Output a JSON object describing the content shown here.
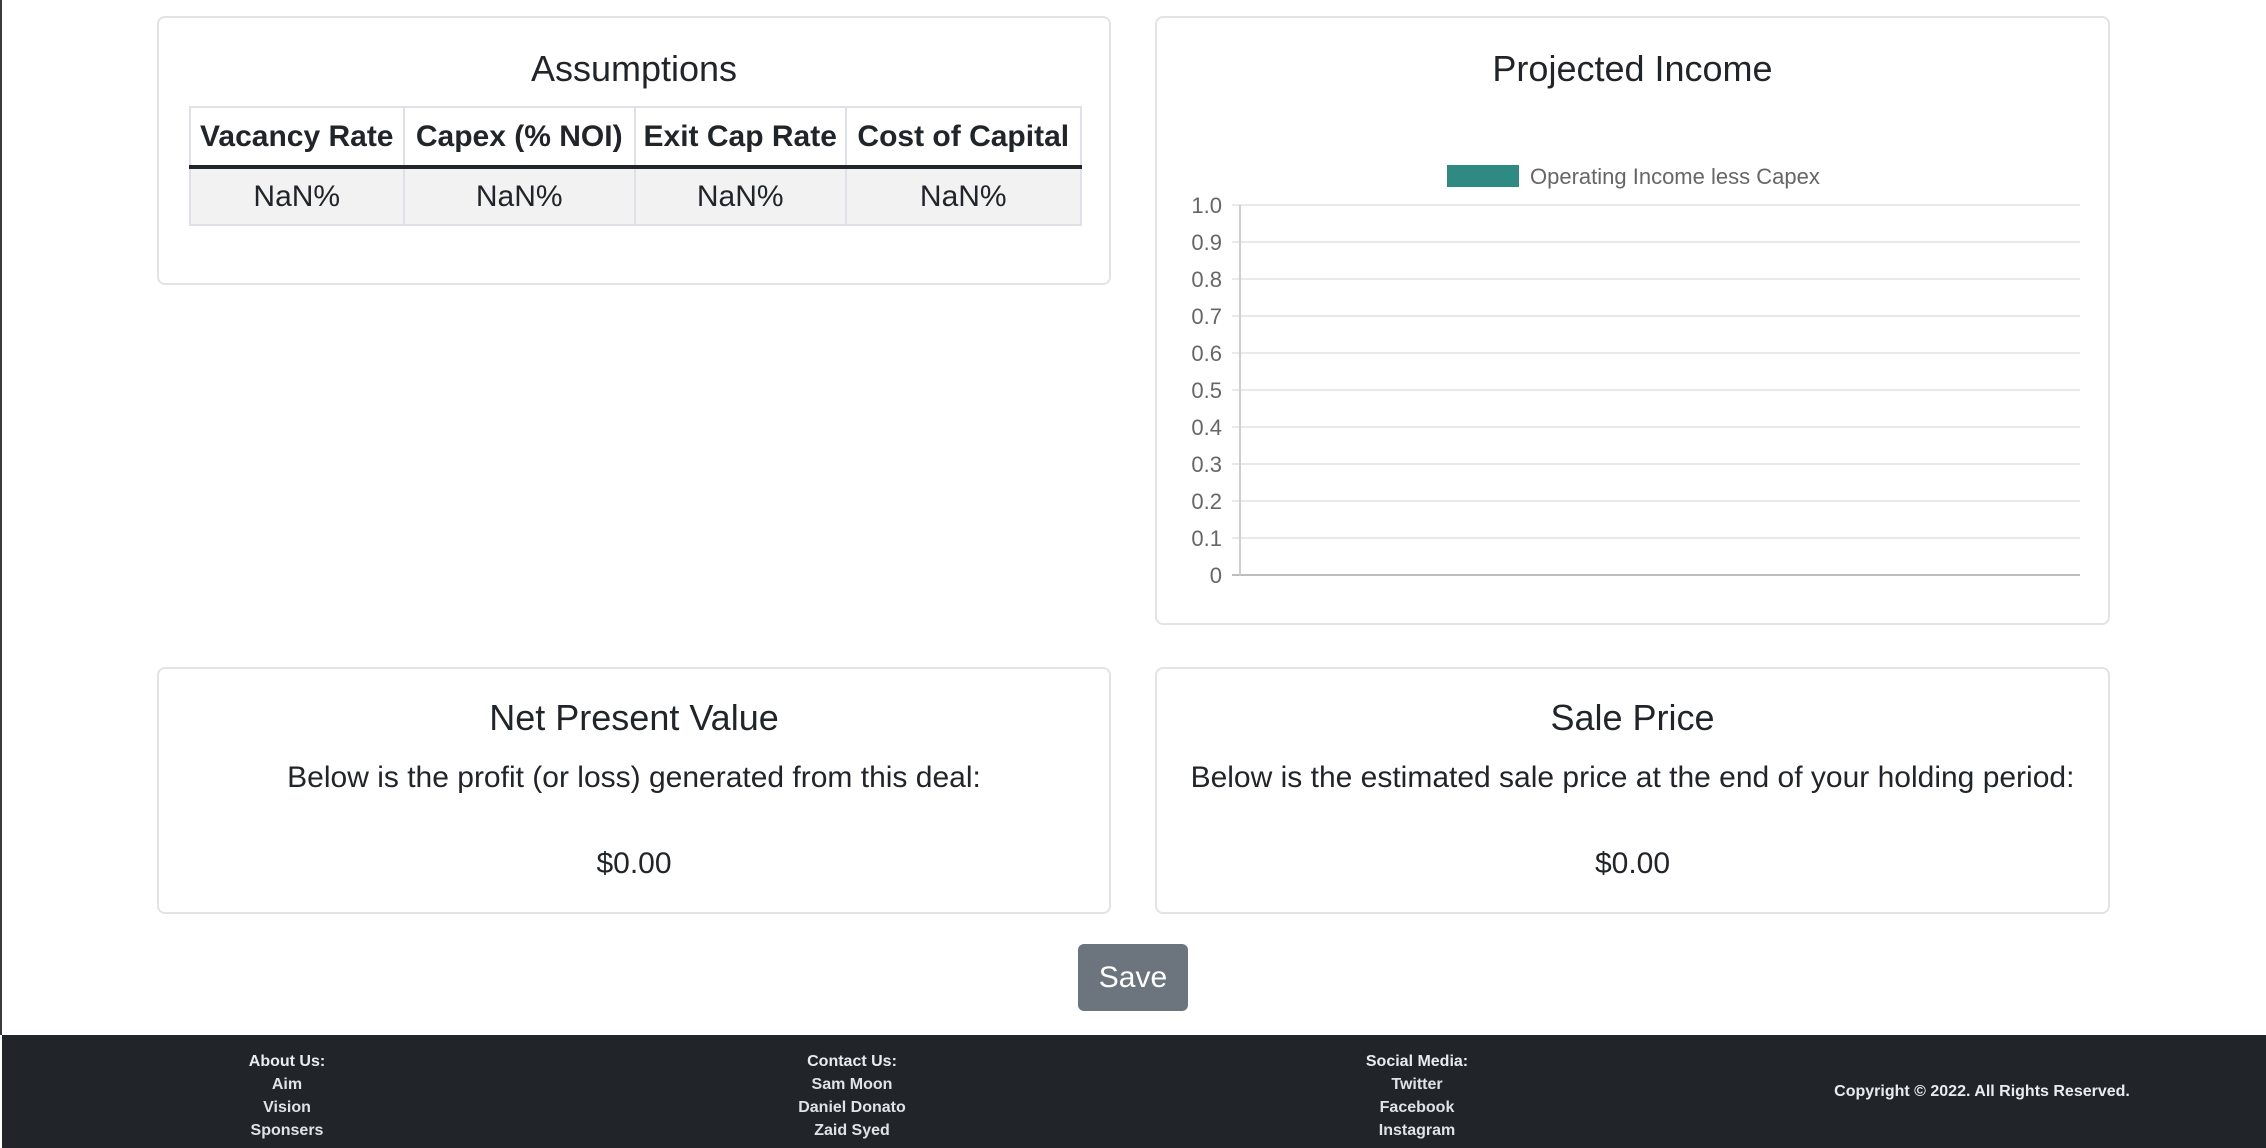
{
  "assumptions": {
    "title": "Assumptions",
    "headers": [
      "Vacancy Rate",
      "Capex (% NOI)",
      "Exit Cap Rate",
      "Cost of Capital"
    ],
    "values": [
      "NaN%",
      "NaN%",
      "NaN%",
      "NaN%"
    ]
  },
  "income": {
    "title": "Projected Income"
  },
  "chart_data": {
    "type": "bar",
    "title": "Projected Income",
    "categories": [],
    "series": [
      {
        "name": "Operating Income less Capex",
        "values": [],
        "color": "#2f8a84"
      }
    ],
    "ylim": [
      0,
      1.0
    ],
    "yticks": [
      "0",
      "0.1",
      "0.2",
      "0.3",
      "0.4",
      "0.5",
      "0.6",
      "0.7",
      "0.8",
      "0.9",
      "1.0"
    ],
    "xlabel": "",
    "ylabel": "",
    "legend": "top",
    "grid": true
  },
  "npv": {
    "title": "Net Present Value",
    "description": "Below is the profit (or loss) generated from this deal:",
    "value": "$0.00"
  },
  "sale": {
    "title": "Sale Price",
    "description": "Below is the estimated sale price at the end of your holding period:",
    "value": "$0.00"
  },
  "save_label": "Save",
  "footer": {
    "about": {
      "heading": "About Us:",
      "items": [
        "Aim",
        "Vision",
        "Sponsers"
      ]
    },
    "contact": {
      "heading": "Contact Us:",
      "items": [
        "Sam Moon",
        "Daniel Donato",
        "Zaid Syed"
      ]
    },
    "social": {
      "heading": "Social Media:",
      "items": [
        "Twitter",
        "Facebook",
        "Instagram"
      ]
    },
    "copyright": "Copyright © 2022. All Rights Reserved."
  }
}
